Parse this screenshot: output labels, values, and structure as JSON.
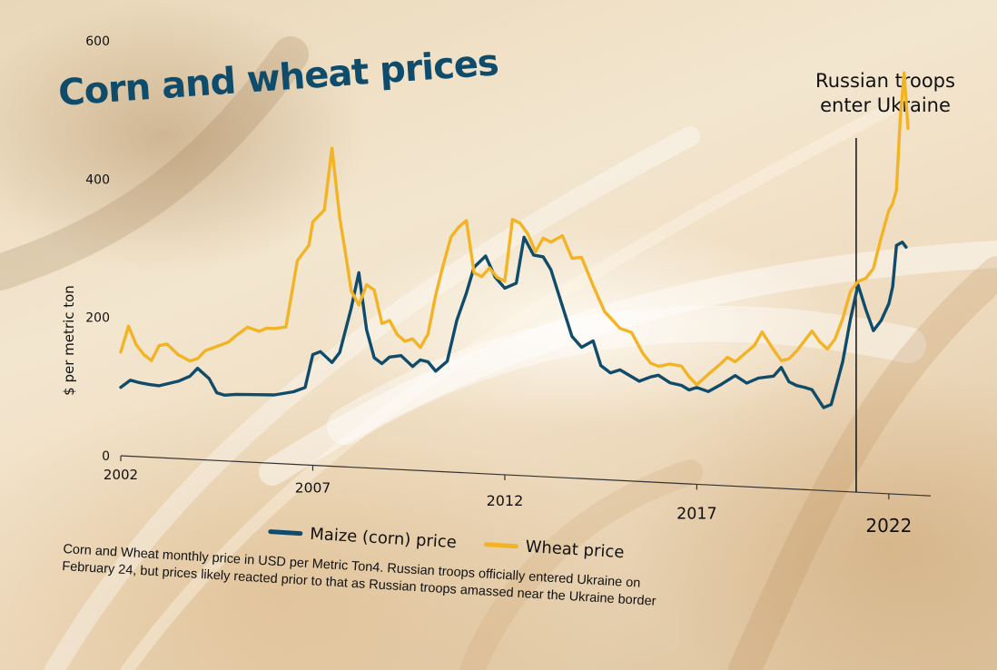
{
  "chart_data": {
    "type": "line",
    "title": "Corn and wheat prices",
    "ylabel": "$ per metric ton",
    "xlabel": "",
    "xlim": [
      2002,
      2022.5
    ],
    "ylim": [
      0,
      650
    ],
    "x_ticks": [
      "2002",
      "2007",
      "2012",
      "2017",
      "2022"
    ],
    "y_ticks": [
      "0",
      "200",
      "400",
      "600"
    ],
    "grid": false,
    "legend_position": "bottom",
    "series": [
      {
        "name": "Maize (corn) price",
        "color": "#0f4c6b",
        "x": [
          2002.0,
          2002.25,
          2002.5,
          2002.75,
          2003.0,
          2003.5,
          2003.8,
          2004.0,
          2004.3,
          2004.5,
          2004.7,
          2005.0,
          2005.5,
          2006.0,
          2006.5,
          2006.8,
          2007.0,
          2007.2,
          2007.5,
          2007.7,
          2008.0,
          2008.2,
          2008.4,
          2008.6,
          2008.8,
          2009.0,
          2009.3,
          2009.6,
          2009.8,
          2010.0,
          2010.2,
          2010.5,
          2010.75,
          2011.0,
          2011.2,
          2011.5,
          2011.75,
          2012.0,
          2012.3,
          2012.5,
          2012.75,
          2013.0,
          2013.2,
          2013.5,
          2013.75,
          2014.0,
          2014.3,
          2014.5,
          2014.75,
          2015.0,
          2015.5,
          2015.8,
          2016.0,
          2016.3,
          2016.6,
          2016.8,
          2017.0,
          2017.3,
          2017.6,
          2018.0,
          2018.3,
          2018.6,
          2019.0,
          2019.2,
          2019.4,
          2019.6,
          2019.8,
          2020.0,
          2020.3,
          2020.5,
          2020.8,
          2021.0,
          2021.2,
          2021.4,
          2021.6,
          2021.8,
          2022.0,
          2022.1,
          2022.2,
          2022.35,
          2022.45
        ],
        "values": [
          99,
          110,
          107,
          105,
          104,
          112,
          120,
          132,
          118,
          98,
          95,
          97,
          98,
          99,
          105,
          112,
          160,
          165,
          150,
          165,
          230,
          282,
          200,
          160,
          152,
          162,
          165,
          150,
          160,
          158,
          145,
          160,
          220,
          260,
          298,
          315,
          285,
          270,
          278,
          345,
          320,
          318,
          300,
          248,
          205,
          190,
          200,
          165,
          155,
          160,
          145,
          152,
          155,
          145,
          142,
          136,
          140,
          135,
          145,
          160,
          150,
          158,
          162,
          175,
          155,
          150,
          148,
          145,
          120,
          125,
          188,
          250,
          300,
          265,
          235,
          250,
          275,
          300,
          360,
          365,
          358
        ]
      },
      {
        "name": "Wheat price",
        "color": "#f2b424",
        "x": [
          2002.0,
          2002.2,
          2002.4,
          2002.6,
          2002.8,
          2003.0,
          2003.2,
          2003.5,
          2003.8,
          2004.0,
          2004.2,
          2004.5,
          2004.8,
          2005.0,
          2005.3,
          2005.6,
          2005.8,
          2006.0,
          2006.3,
          2006.6,
          2006.9,
          2007.0,
          2007.3,
          2007.5,
          2007.7,
          2007.85,
          2008.0,
          2008.2,
          2008.4,
          2008.6,
          2008.8,
          2009.0,
          2009.2,
          2009.4,
          2009.6,
          2009.8,
          2010.0,
          2010.2,
          2010.4,
          2010.6,
          2010.8,
          2011.0,
          2011.2,
          2011.4,
          2011.6,
          2011.8,
          2012.0,
          2012.2,
          2012.4,
          2012.6,
          2012.8,
          2013.0,
          2013.2,
          2013.5,
          2013.75,
          2014.0,
          2014.3,
          2014.6,
          2014.8,
          2015.0,
          2015.3,
          2015.6,
          2015.8,
          2016.0,
          2016.3,
          2016.6,
          2016.8,
          2017.0,
          2017.3,
          2017.6,
          2017.8,
          2018.0,
          2018.3,
          2018.5,
          2018.7,
          2019.0,
          2019.2,
          2019.4,
          2019.6,
          2019.8,
          2020.0,
          2020.2,
          2020.4,
          2020.6,
          2020.8,
          2021.0,
          2021.2,
          2021.4,
          2021.6,
          2021.8,
          2022.0,
          2022.1,
          2022.2,
          2022.3,
          2022.4,
          2022.5
        ],
        "values": [
          150,
          188,
          162,
          148,
          140,
          162,
          165,
          150,
          142,
          146,
          158,
          165,
          172,
          182,
          195,
          190,
          195,
          195,
          198,
          295,
          318,
          352,
          370,
          460,
          360,
          310,
          255,
          235,
          265,
          258,
          210,
          215,
          195,
          186,
          190,
          178,
          198,
          255,
          300,
          340,
          355,
          365,
          290,
          285,
          298,
          285,
          280,
          370,
          365,
          350,
          325,
          345,
          340,
          350,
          318,
          320,
          280,
          243,
          232,
          220,
          215,
          185,
          172,
          168,
          172,
          170,
          155,
          144,
          160,
          175,
          186,
          180,
          195,
          205,
          225,
          200,
          185,
          188,
          200,
          215,
          230,
          215,
          205,
          220,
          250,
          290,
          305,
          310,
          325,
          370,
          410,
          420,
          440,
          545,
          610,
          530
        ]
      }
    ],
    "annotation": {
      "x": 2021.15,
      "text_lines": [
        "Russian troops",
        "enter Ukraine"
      ]
    }
  },
  "caption_lines": [
    "Corn and Wheat monthly price in USD per Metric Ton4. Russian troops officially entered Ukraine on",
    "February 24, but prices likely reacted prior to that as Russian troops amassed near the Ukraine border"
  ]
}
